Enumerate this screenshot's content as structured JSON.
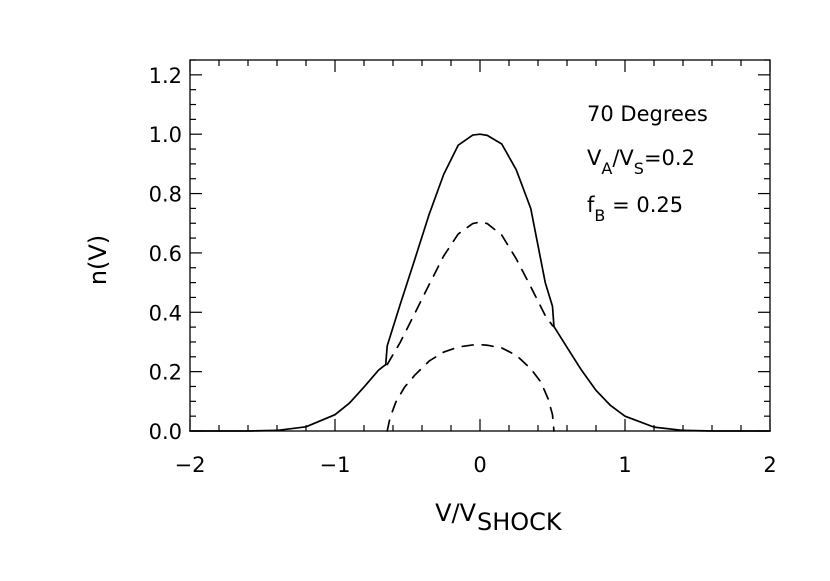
{
  "chart_data": {
    "type": "line",
    "xlabel": "V/V",
    "xlabel_sub": "SHOCK",
    "ylabel": "n(V)",
    "xlim": [
      -2,
      2
    ],
    "ylim": [
      0,
      1.25
    ],
    "x_ticks": [
      -2,
      -1,
      0,
      1,
      2
    ],
    "x_tick_labels": [
      "−2",
      "−1",
      "0",
      "1",
      "2"
    ],
    "y_ticks": [
      0,
      0.2,
      0.4,
      0.6,
      0.8,
      1.0,
      1.2
    ],
    "y_tick_labels": [
      "0.0",
      "0.2",
      "0.4",
      "0.6",
      "0.8",
      "1.0",
      "1.2"
    ],
    "grid": false,
    "annotations": {
      "angle": "70 Degrees",
      "va_main_1": "V",
      "va_sub_1": "A",
      "va_main_2": "/V",
      "va_sub_2": "S",
      "va_main_3": "=0.2",
      "fb_main_1": "f",
      "fb_sub_1": "B",
      "fb_main_2": " = 0.25"
    },
    "series": [
      {
        "style": "solid",
        "x": [
          -2.0,
          -1.8,
          -1.6,
          -1.4,
          -1.2,
          -1.0,
          -0.9,
          -0.8,
          -0.7,
          -0.65,
          -0.64,
          -0.55,
          -0.45,
          -0.35,
          -0.25,
          -0.15,
          -0.05,
          0.0,
          0.05,
          0.15,
          0.25,
          0.35,
          0.45,
          0.5,
          0.51,
          0.6,
          0.7,
          0.8,
          0.9,
          1.0,
          1.2,
          1.4,
          1.6,
          1.8,
          2.0
        ],
        "y": [
          0.0,
          0.0,
          0.0,
          0.002,
          0.014,
          0.055,
          0.094,
          0.148,
          0.205,
          0.224,
          0.287,
          0.427,
          0.578,
          0.731,
          0.865,
          0.963,
          0.997,
          1.0,
          0.996,
          0.967,
          0.88,
          0.75,
          0.5,
          0.42,
          0.352,
          0.282,
          0.205,
          0.137,
          0.086,
          0.05,
          0.013,
          0.002,
          0.0,
          0.0,
          0.0
        ]
      },
      {
        "style": "dashed",
        "x": [
          -0.64,
          -0.55,
          -0.45,
          -0.35,
          -0.25,
          -0.15,
          -0.05,
          0.0,
          0.05,
          0.15,
          0.25,
          0.35,
          0.45,
          0.5,
          0.51
        ],
        "y": [
          0.224,
          0.299,
          0.396,
          0.494,
          0.59,
          0.664,
          0.699,
          0.704,
          0.699,
          0.66,
          0.58,
          0.486,
          0.389,
          0.355,
          0.352
        ]
      },
      {
        "style": "dashed",
        "x": [
          -0.64,
          -0.62,
          -0.58,
          -0.52,
          -0.45,
          -0.35,
          -0.25,
          -0.15,
          -0.05,
          0.0,
          0.05,
          0.15,
          0.25,
          0.35,
          0.42,
          0.47,
          0.5,
          0.51
        ],
        "y": [
          0.0,
          0.045,
          0.098,
          0.148,
          0.188,
          0.236,
          0.266,
          0.283,
          0.29,
          0.291,
          0.289,
          0.28,
          0.255,
          0.21,
          0.165,
          0.108,
          0.055,
          0.0
        ]
      }
    ]
  }
}
